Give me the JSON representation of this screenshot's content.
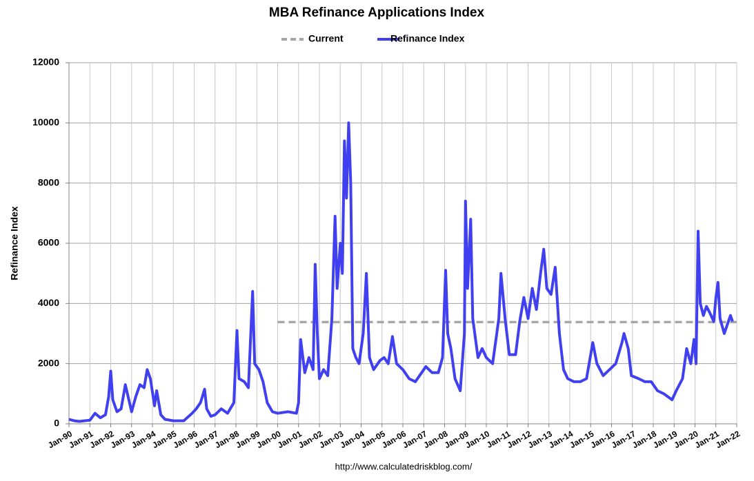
{
  "chart_data": {
    "type": "line",
    "title": "MBA Refinance Applications Index",
    "ylabel": "Refinance Index",
    "source": "http://www.calculatedriskblog.com/",
    "legend": "top",
    "grid": true,
    "xlim": [
      1990,
      2022
    ],
    "ylim": [
      0,
      12000
    ],
    "yticks": [
      0,
      2000,
      4000,
      6000,
      8000,
      10000,
      12000
    ],
    "xticks": [
      {
        "value": 1990,
        "label": "Jan-90"
      },
      {
        "value": 1991,
        "label": "Jan-91"
      },
      {
        "value": 1992,
        "label": "Jan-92"
      },
      {
        "value": 1993,
        "label": "Jan-93"
      },
      {
        "value": 1994,
        "label": "Jan-94"
      },
      {
        "value": 1995,
        "label": "Jan-95"
      },
      {
        "value": 1996,
        "label": "Jan-96"
      },
      {
        "value": 1997,
        "label": "Jan-97"
      },
      {
        "value": 1998,
        "label": "Jan-98"
      },
      {
        "value": 1999,
        "label": "Jan-99"
      },
      {
        "value": 2000,
        "label": "Jan-00"
      },
      {
        "value": 2001,
        "label": "Jan-01"
      },
      {
        "value": 2002,
        "label": "Jan-02"
      },
      {
        "value": 2003,
        "label": "Jan-03"
      },
      {
        "value": 2004,
        "label": "Jan-04"
      },
      {
        "value": 2005,
        "label": "Jan-05"
      },
      {
        "value": 2006,
        "label": "Jan-06"
      },
      {
        "value": 2007,
        "label": "Jan-07"
      },
      {
        "value": 2008,
        "label": "Jan-08"
      },
      {
        "value": 2009,
        "label": "Jan-09"
      },
      {
        "value": 2010,
        "label": "Jan-10"
      },
      {
        "value": 2011,
        "label": "Jan-11"
      },
      {
        "value": 2012,
        "label": "Jan-12"
      },
      {
        "value": 2013,
        "label": "Jan-13"
      },
      {
        "value": 2014,
        "label": "Jan-14"
      },
      {
        "value": 2015,
        "label": "Jan-15"
      },
      {
        "value": 2016,
        "label": "Jan-16"
      },
      {
        "value": 2017,
        "label": "Jan-17"
      },
      {
        "value": 2018,
        "label": "Jan-18"
      },
      {
        "value": 2019,
        "label": "Jan-19"
      },
      {
        "value": 2020,
        "label": "Jan-20"
      },
      {
        "value": 2021,
        "label": "Jan-21"
      },
      {
        "value": 2022,
        "label": "Jan-22"
      }
    ],
    "series": [
      {
        "name": "Current",
        "color": "#a6a6a6",
        "dashed": true,
        "x": [
          2000,
          2022
        ],
        "values": [
          3380,
          3380
        ]
      },
      {
        "name": "Refinance Index",
        "color": "#4040f0",
        "dashed": false,
        "x": [
          1990,
          1990.25,
          1990.5,
          1990.75,
          1991,
          1991.25,
          1991.5,
          1991.75,
          1991.9,
          1992.0,
          1992.1,
          1992.3,
          1992.5,
          1992.7,
          1992.8,
          1993.0,
          1993.2,
          1993.4,
          1993.6,
          1993.75,
          1993.9,
          1994.1,
          1994.2,
          1994.4,
          1994.6,
          1995,
          1995.5,
          1995.9,
          1996.1,
          1996.3,
          1996.5,
          1996.6,
          1996.8,
          1997.0,
          1997.3,
          1997.6,
          1997.9,
          1998.05,
          1998.15,
          1998.4,
          1998.6,
          1998.8,
          1998.9,
          1999.1,
          1999.3,
          1999.5,
          1999.75,
          2000,
          2000.5,
          2000.9,
          2001.0,
          2001.1,
          2001.3,
          2001.5,
          2001.7,
          2001.8,
          2001.9,
          2002.0,
          2002.2,
          2002.4,
          2002.6,
          2002.75,
          2002.85,
          2003.0,
          2003.1,
          2003.2,
          2003.3,
          2003.4,
          2003.5,
          2003.6,
          2003.75,
          2003.9,
          2004.1,
          2004.25,
          2004.4,
          2004.6,
          2004.9,
          2005.1,
          2005.3,
          2005.5,
          2005.7,
          2006.0,
          2006.3,
          2006.6,
          2006.9,
          2007.1,
          2007.4,
          2007.7,
          2007.9,
          2008.05,
          2008.15,
          2008.3,
          2008.5,
          2008.75,
          2008.95,
          2009.0,
          2009.1,
          2009.25,
          2009.35,
          2009.6,
          2009.8,
          2010.0,
          2010.3,
          2010.6,
          2010.7,
          2010.9,
          2011.1,
          2011.4,
          2011.6,
          2011.8,
          2012.0,
          2012.2,
          2012.4,
          2012.6,
          2012.75,
          2012.9,
          2013.1,
          2013.3,
          2013.5,
          2013.7,
          2013.9,
          2014.2,
          2014.5,
          2014.8,
          2015.1,
          2015.3,
          2015.6,
          2015.9,
          2016.2,
          2016.5,
          2016.6,
          2016.8,
          2016.95,
          2017.3,
          2017.6,
          2017.9,
          2018.2,
          2018.5,
          2018.9,
          2019.1,
          2019.4,
          2019.6,
          2019.8,
          2019.95,
          2020.05,
          2020.15,
          2020.25,
          2020.4,
          2020.55,
          2020.7,
          2020.9,
          2021.0,
          2021.1,
          2021.2,
          2021.4,
          2021.55,
          2021.7,
          2021.8
        ],
        "values": [
          150,
          100,
          80,
          100,
          120,
          350,
          200,
          300,
          900,
          1750,
          800,
          400,
          500,
          1300,
          1000,
          400,
          900,
          1300,
          1200,
          1800,
          1500,
          600,
          1100,
          300,
          150,
          100,
          100,
          350,
          500,
          700,
          1150,
          500,
          250,
          300,
          500,
          350,
          700,
          3100,
          1500,
          1400,
          1200,
          4400,
          2000,
          1800,
          1400,
          700,
          400,
          350,
          400,
          350,
          700,
          2800,
          1700,
          2200,
          1800,
          5300,
          3000,
          1500,
          1800,
          1600,
          3500,
          6900,
          4500,
          6000,
          5000,
          9400,
          7500,
          10000,
          8000,
          2500,
          2200,
          2000,
          3000,
          5000,
          2200,
          1800,
          2100,
          2200,
          2000,
          2900,
          2000,
          1800,
          1500,
          1400,
          1700,
          1900,
          1700,
          1700,
          2200,
          5100,
          3000,
          2500,
          1500,
          1100,
          3000,
          7400,
          4500,
          6800,
          3500,
          2200,
          2500,
          2200,
          2000,
          3500,
          5000,
          3500,
          2300,
          2300,
          3400,
          4200,
          3500,
          4500,
          3800,
          5000,
          5800,
          4500,
          4300,
          5200,
          3000,
          1800,
          1500,
          1400,
          1400,
          1500,
          2700,
          2000,
          1600,
          1800,
          2000,
          2700,
          3000,
          2500,
          1600,
          1500,
          1400,
          1400,
          1100,
          1000,
          800,
          1100,
          1500,
          2500,
          2000,
          2800,
          2000,
          6400,
          4000,
          3600,
          3900,
          3700,
          3400,
          4200,
          4700,
          3500,
          3000,
          3300,
          3600,
          3400
        ]
      }
    ]
  }
}
